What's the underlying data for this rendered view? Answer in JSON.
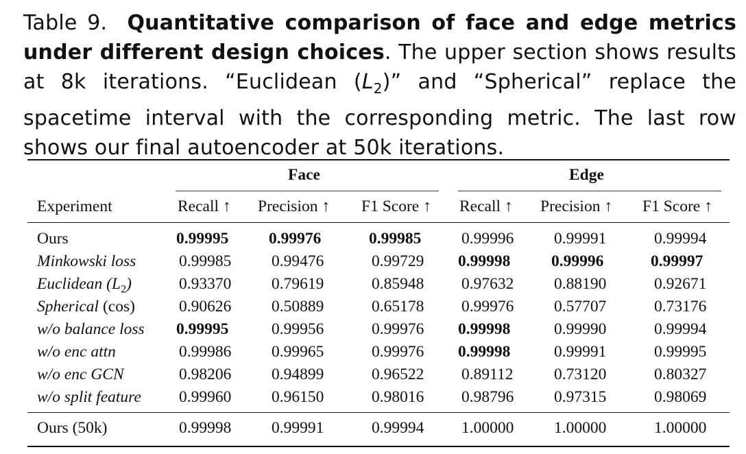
{
  "caption": {
    "label": "Table 9.",
    "title": "Quantitative comparison of face and edge metrics under different design choices",
    "text_1": ". The upper section shows results at 8k iterations. “Euclidean (",
    "l2_var": "L",
    "l2_sub": "2",
    "text_2": ")” and “Spherical” replace the spacetime interval with the corresponding metric. The last row shows our final autoencoder at 50k iterations."
  },
  "table": {
    "group_headers": [
      "Face",
      "Edge"
    ],
    "columns": [
      "Experiment",
      "Recall ↑",
      "Precision ↑",
      "F1 Score ↑",
      "Recall ↑",
      "Precision ↑",
      "F1 Score ↑"
    ],
    "rows": [
      {
        "name": "Ours",
        "values": [
          "0.99995",
          "0.99976",
          "0.99985",
          "0.99996",
          "0.99991",
          "0.99994"
        ]
      },
      {
        "name": "Minkowski loss",
        "values": [
          "0.99985",
          "0.99476",
          "0.99729",
          "0.99998",
          "0.99996",
          "0.99997"
        ]
      },
      {
        "name_main": "Euclidean (",
        "name_var": "L",
        "name_sub": "2",
        "name_end": ")",
        "values": [
          "0.93370",
          "0.79619",
          "0.85948",
          "0.97632",
          "0.88190",
          "0.92671"
        ]
      },
      {
        "name_main": "Spherical",
        "name_plain": " (cos)",
        "values": [
          "0.90626",
          "0.50889",
          "0.65178",
          "0.99976",
          "0.57707",
          "0.73176"
        ]
      },
      {
        "name": "w/o balance loss",
        "values": [
          "0.99995",
          "0.99956",
          "0.99976",
          "0.99998",
          "0.99990",
          "0.99994"
        ]
      },
      {
        "name": "w/o enc attn",
        "values": [
          "0.99986",
          "0.99965",
          "0.99976",
          "0.99998",
          "0.99991",
          "0.99995"
        ]
      },
      {
        "name": "w/o enc GCN",
        "values": [
          "0.98206",
          "0.94899",
          "0.96522",
          "0.89112",
          "0.73120",
          "0.80327"
        ]
      },
      {
        "name": "w/o split feature",
        "values": [
          "0.99960",
          "0.96150",
          "0.98016",
          "0.98796",
          "0.97315",
          "0.98069"
        ]
      },
      {
        "name": "Ours (50k)",
        "values": [
          "0.99998",
          "0.99991",
          "0.99994",
          "1.00000",
          "1.00000",
          "1.00000"
        ]
      }
    ]
  }
}
